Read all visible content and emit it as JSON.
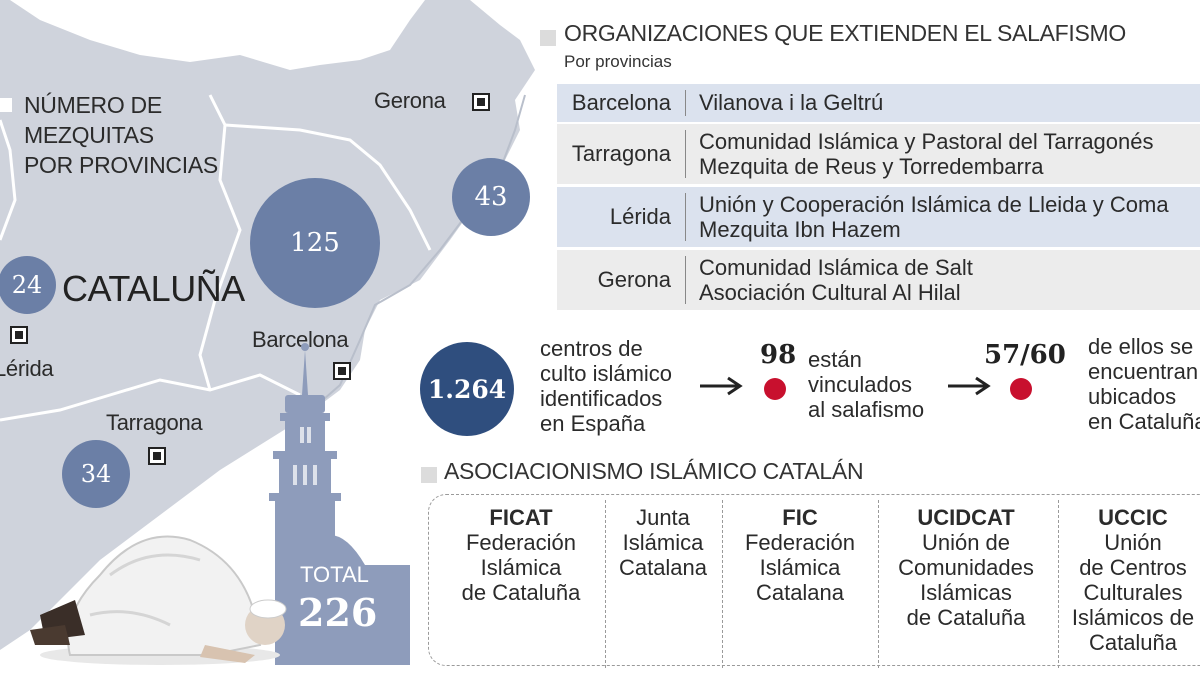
{
  "map": {
    "legend_title_lines": [
      "NÚMERO DE",
      "MEZQUITAS",
      "POR PROVINCIAS"
    ],
    "region_label": "CATALUÑA",
    "cities": [
      {
        "name": "Gerona"
      },
      {
        "name": "Barcelona"
      },
      {
        "name": "Tarragona"
      },
      {
        "name": "Lérida"
      }
    ],
    "mosque_counts": {
      "barcelona": "125",
      "gerona": "43",
      "lerida": "24",
      "tarragona": "34"
    },
    "total_label": "TOTAL",
    "total_value": "226"
  },
  "organizations": {
    "title": "ORGANIZACIONES QUE EXTIENDEN EL SALAFISMO",
    "subtitle": "Por provincias",
    "rows": [
      {
        "province": "Barcelona",
        "orgs": [
          "Vilanova i la Geltrú"
        ]
      },
      {
        "province": "Tarragona",
        "orgs": [
          "Comunidad Islámica y Pastoral del Tarragonés",
          "Mezquita de Reus y Torredembarra"
        ]
      },
      {
        "province": "Lérida",
        "orgs": [
          "Unión y Cooperación Islámica de Lleida y Coma",
          "Mezquita Ibn Hazem"
        ]
      },
      {
        "province": "Gerona",
        "orgs": [
          "Comunidad Islámica de Salt",
          "Asociación Cultural Al Hilal"
        ]
      }
    ]
  },
  "stats": {
    "centers_value": "1.264",
    "centers_text": [
      "centros de",
      "culto islámico",
      "identificados",
      "en España"
    ],
    "linked_value": "98",
    "linked_text": [
      "están",
      "vinculados",
      "al salafismo"
    ],
    "catalonia_value": "57/60",
    "catalonia_text": [
      "de ellos se",
      "encuentran",
      "ubicados",
      "en Cataluña"
    ]
  },
  "associations": {
    "title": "ASOCIACIONISMO ISLÁMICO CATALÁN",
    "items": [
      {
        "acronym": "FICAT",
        "lines": [
          "Federación",
          "Islámica",
          "de Cataluña"
        ]
      },
      {
        "acronym": "",
        "lines": [
          "Junta",
          "Islámica",
          "Catalana"
        ]
      },
      {
        "acronym": "FIC",
        "lines": [
          "Federación",
          "Islámica",
          "Catalana"
        ]
      },
      {
        "acronym": "UCIDCAT",
        "lines": [
          "Unión de",
          "Comunidades",
          "Islámicas",
          "de Cataluña"
        ]
      },
      {
        "acronym": "UCCIC",
        "lines": [
          "Unión",
          "de Centros",
          "Culturales",
          "Islámicos de",
          "Cataluña"
        ]
      }
    ]
  },
  "colors": {
    "map_fill": "#cfd3dc",
    "bubble": "#6b7fa6",
    "bubble_dark": "#2f4e7e",
    "row_band": "#dbe2ee",
    "row_band_alt": "#ececec",
    "red": "#c8102e"
  },
  "icons": [
    "city-marker-icon",
    "arrow-right-icon",
    "red-dot-icon",
    "minaret-illustration",
    "praying-man-illustration"
  ]
}
